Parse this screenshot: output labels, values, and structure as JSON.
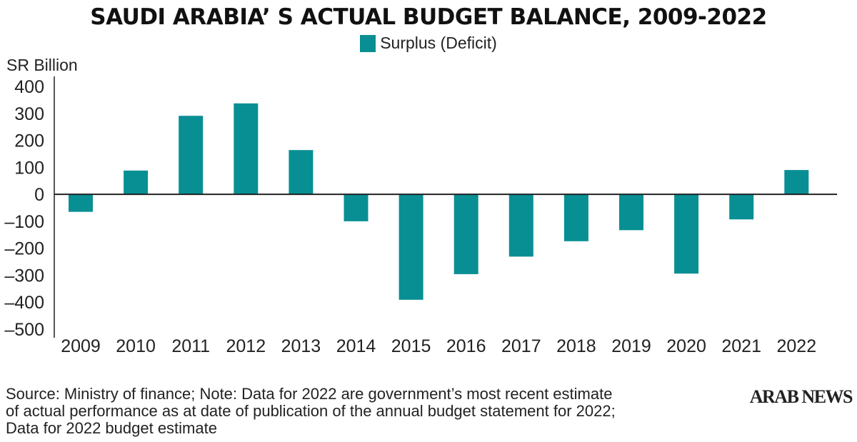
{
  "chart_data": {
    "type": "bar",
    "title": "SAUDI ARABIA’ S ACTUAL BUDGET BALANCE, 2009-2022",
    "ylabel": "SR Billion",
    "xlabel": "",
    "legend": {
      "entries": [
        "Surplus (Deficit)"
      ],
      "placement": "top-center"
    },
    "categories": [
      "2009",
      "2010",
      "2011",
      "2012",
      "2013",
      "2014",
      "2015",
      "2016",
      "2017",
      "2018",
      "2019",
      "2020",
      "2021",
      "2022"
    ],
    "series": [
      {
        "name": "Surplus (Deficit)",
        "color": "#088f93",
        "values": [
          -65,
          88,
          291,
          337,
          164,
          -100,
          -391,
          -296,
          -231,
          -174,
          -133,
          -294,
          -93,
          90
        ]
      }
    ],
    "ylim": [
      -500,
      400
    ],
    "yticks": [
      400,
      300,
      200,
      100,
      0,
      -100,
      -200,
      -300,
      -400,
      -500
    ],
    "ytick_labels": [
      "400",
      "300",
      "200",
      "100",
      "0",
      "-100",
      "-200",
      "-300",
      "-400",
      "-500"
    ],
    "grid": false
  },
  "header": {
    "title": "SAUDI ARABIA’ S ACTUAL BUDGET BALANCE, 2009-2022",
    "legend_label": "Surplus (Deficit)",
    "y_axis_label": "SR Billion"
  },
  "footer": {
    "source_lines": [
      "Source: Ministry of finance; Note: Data for 2022 are government’s most recent estimate",
      "of actual performance as at date of publication of the annual budget statement for 2022;",
      "Data for 2022 budget estimate"
    ],
    "brand": "ARAB NEWS"
  }
}
